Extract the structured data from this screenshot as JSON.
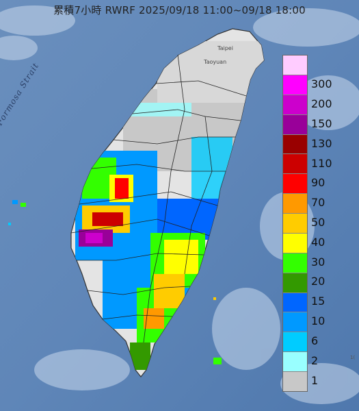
{
  "title": "累積7小時 RWRF 2025/09/18 11:00~09/18 18:00",
  "map": {
    "strait_label": "Formosa Strait",
    "city_labels": [
      "Taipei",
      "Taoyuan"
    ],
    "corner_mark": "1("
  },
  "legend": {
    "unit_ticks": [
      "300",
      "200",
      "150",
      "130",
      "110",
      "90",
      "70",
      "50",
      "40",
      "30",
      "20",
      "15",
      "10",
      "6",
      "2",
      "1"
    ],
    "colors": [
      "#ffccff",
      "#ff00ff",
      "#cc00cc",
      "#990099",
      "#990000",
      "#cc0000",
      "#ff0000",
      "#ff9900",
      "#ffcc00",
      "#ffff00",
      "#33ff00",
      "#339900",
      "#0066ff",
      "#0099ff",
      "#00ccff",
      "#99ffff",
      "#c8c8c8"
    ]
  }
}
